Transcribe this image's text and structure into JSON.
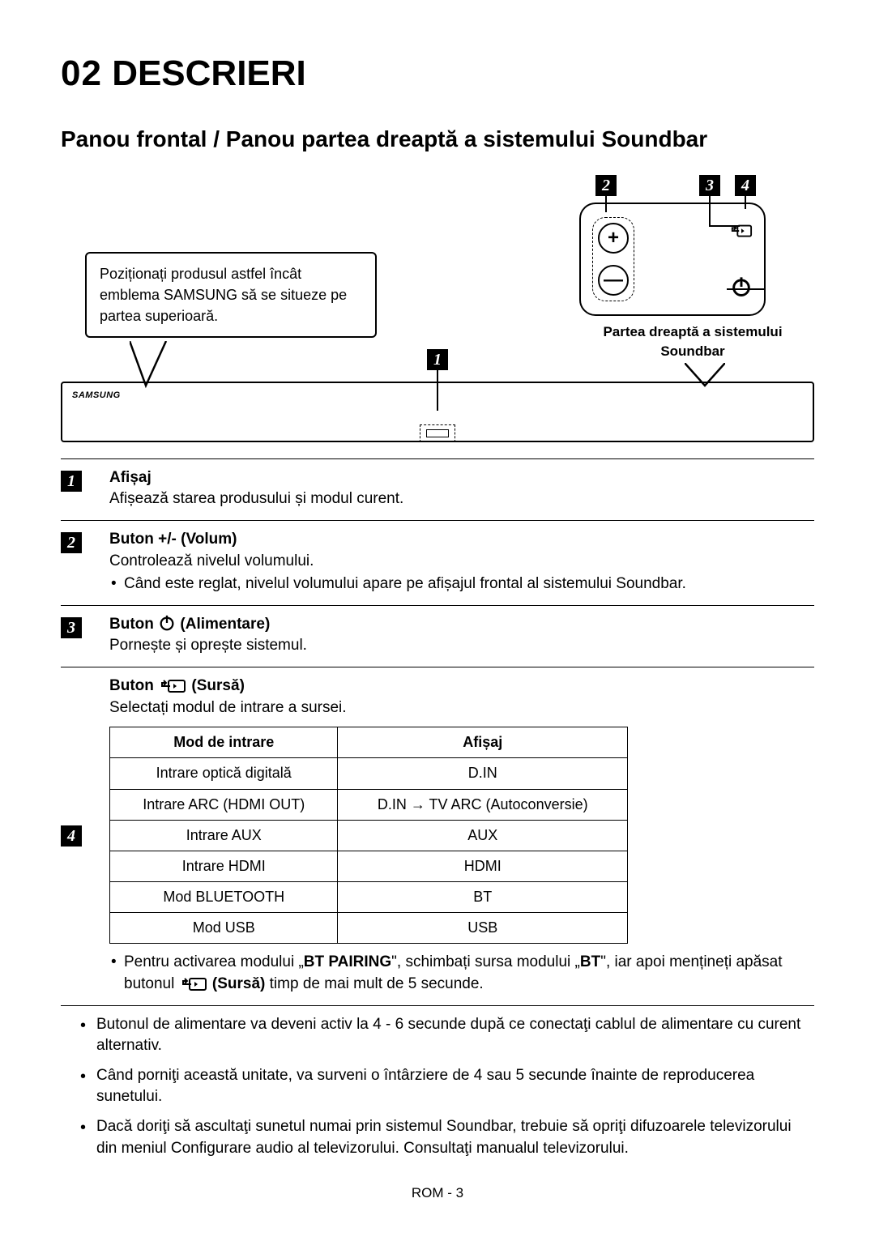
{
  "chapter": {
    "num": "02",
    "title": "DESCRIERI"
  },
  "section": {
    "title": "Panou frontal / Panou partea dreaptă a sistemului Soundbar"
  },
  "diagram": {
    "callout_left": "Poziționați produsul astfel încât emblema SAMSUNG să se situeze pe partea superioară.",
    "samsung": "SAMSUNG",
    "right_caption": "Partea dreaptă a sistemului Soundbar",
    "badge1": "1",
    "badge2": "2",
    "badge3": "3",
    "badge4": "4"
  },
  "rows": {
    "r1": {
      "num": "1",
      "title": "Afișaj",
      "desc": "Afișează starea produsului și modul curent."
    },
    "r2": {
      "num": "2",
      "title": "Buton +/- (Volum)",
      "desc": "Controlează nivelul volumului.",
      "bullet": "Când este reglat, nivelul volumului apare pe afișajul frontal al sistemului Soundbar."
    },
    "r3": {
      "num": "3",
      "title_pre": "Buton ",
      "title_post": " (Alimentare)",
      "desc": "Pornește și oprește sistemul."
    },
    "r4": {
      "num": "4",
      "title_pre": "Buton ",
      "title_post": " (Sursă)",
      "desc": "Selectați modul de intrare a sursei.",
      "note_pre": "Pentru activarea modului „",
      "note_bold1": "BT PAIRING",
      "note_mid1": "\", schimbați sursa modului „",
      "note_bold2": "BT",
      "note_mid2": "\", iar apoi mențineți apăsat butonul ",
      "note_bold3": " (Sursă)",
      "note_post": " timp de mai mult de 5 secunde."
    }
  },
  "mode_table": {
    "h1": "Mod de intrare",
    "h2": "Afișaj",
    "rows": [
      {
        "c1": "Intrare optică digitală",
        "c2": "D.IN"
      },
      {
        "c1": "Intrare ARC (HDMI OUT)",
        "c2": "D.IN → TV ARC (Autoconversie)"
      },
      {
        "c1": "Intrare AUX",
        "c2": "AUX"
      },
      {
        "c1": "Intrare HDMI",
        "c2": "HDMI"
      },
      {
        "c1": "Mod BLUETOOTH",
        "c2": "BT"
      },
      {
        "c1": "Mod USB",
        "c2": "USB"
      }
    ]
  },
  "notes": {
    "n1": "Butonul de alimentare va deveni activ la 4 - 6 secunde după ce conectaţi cablul de alimentare cu curent alternativ.",
    "n2": "Când porniţi această unitate, va surveni o întârziere de 4 sau 5 secunde înainte de reproducerea sunetului.",
    "n3": "Dacă doriţi să ascultaţi sunetul numai prin sistemul Soundbar, trebuie să opriţi difuzoarele televizorului din meniul Configurare audio al televizorului. Consultaţi manualul televizorului."
  },
  "footer": "ROM - 3",
  "colors": {
    "ink": "#000000",
    "paper": "#ffffff"
  }
}
